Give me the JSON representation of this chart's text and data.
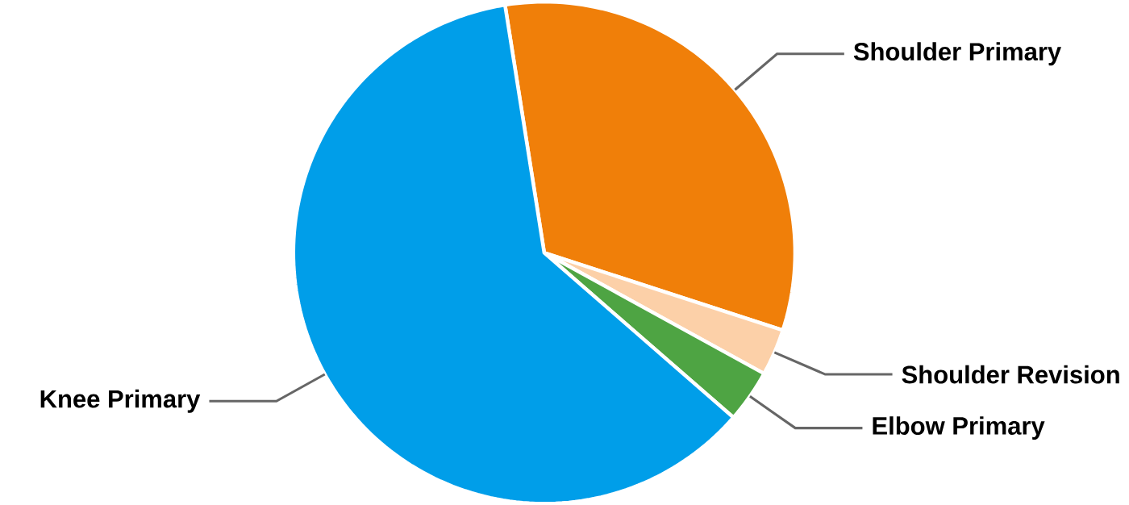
{
  "chart_data": {
    "type": "pie",
    "categories": [
      "Shoulder Primary",
      "Shoulder Revision",
      "Elbow Primary",
      "Knee Primary"
    ],
    "values": [
      32.5,
      3,
      3.4,
      61.1
    ],
    "colors": [
      "#f07f09",
      "#fcd0a8",
      "#4ea443",
      "#009ee9"
    ]
  }
}
